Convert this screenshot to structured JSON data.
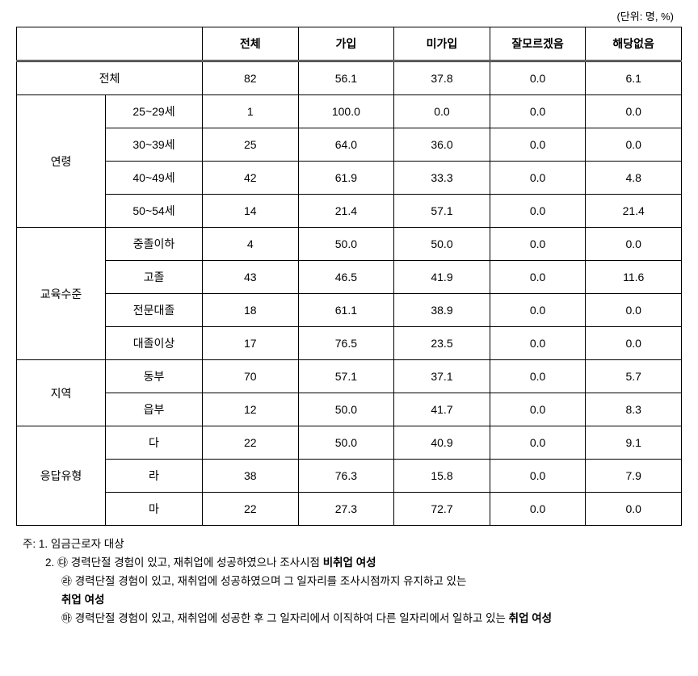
{
  "unit_label": "(단위: 명, %)",
  "headers": {
    "blank": "",
    "col1": "전체",
    "col2": "가입",
    "col3": "미가입",
    "col4": "잘모르겠음",
    "col5": "해당없음"
  },
  "total_row": {
    "label": "전체",
    "c1": "82",
    "c2": "56.1",
    "c3": "37.8",
    "c4": "0.0",
    "c5": "6.1"
  },
  "groups": [
    {
      "label": "연령",
      "rows": [
        {
          "label": "25~29세",
          "c1": "1",
          "c2": "100.0",
          "c3": "0.0",
          "c4": "0.0",
          "c5": "0.0"
        },
        {
          "label": "30~39세",
          "c1": "25",
          "c2": "64.0",
          "c3": "36.0",
          "c4": "0.0",
          "c5": "0.0"
        },
        {
          "label": "40~49세",
          "c1": "42",
          "c2": "61.9",
          "c3": "33.3",
          "c4": "0.0",
          "c5": "4.8"
        },
        {
          "label": "50~54세",
          "c1": "14",
          "c2": "21.4",
          "c3": "57.1",
          "c4": "0.0",
          "c5": "21.4"
        }
      ]
    },
    {
      "label": "교육수준",
      "rows": [
        {
          "label": "중졸이하",
          "c1": "4",
          "c2": "50.0",
          "c3": "50.0",
          "c4": "0.0",
          "c5": "0.0"
        },
        {
          "label": "고졸",
          "c1": "43",
          "c2": "46.5",
          "c3": "41.9",
          "c4": "0.0",
          "c5": "11.6"
        },
        {
          "label": "전문대졸",
          "c1": "18",
          "c2": "61.1",
          "c3": "38.9",
          "c4": "0.0",
          "c5": "0.0"
        },
        {
          "label": "대졸이상",
          "c1": "17",
          "c2": "76.5",
          "c3": "23.5",
          "c4": "0.0",
          "c5": "0.0"
        }
      ]
    },
    {
      "label": "지역",
      "rows": [
        {
          "label": "동부",
          "c1": "70",
          "c2": "57.1",
          "c3": "37.1",
          "c4": "0.0",
          "c5": "5.7"
        },
        {
          "label": "읍부",
          "c1": "12",
          "c2": "50.0",
          "c3": "41.7",
          "c4": "0.0",
          "c5": "8.3"
        }
      ]
    },
    {
      "label": "응답유형",
      "rows": [
        {
          "label": "다",
          "c1": "22",
          "c2": "50.0",
          "c3": "40.9",
          "c4": "0.0",
          "c5": "9.1"
        },
        {
          "label": "라",
          "c1": "38",
          "c2": "76.3",
          "c3": "15.8",
          "c4": "0.0",
          "c5": "7.9"
        },
        {
          "label": "마",
          "c1": "22",
          "c2": "27.3",
          "c3": "72.7",
          "c4": "0.0",
          "c5": "0.0"
        }
      ]
    }
  ],
  "notes": {
    "prefix": "주: ",
    "n1": "1. 임금근로자 대상",
    "n2_prefix": "2. ",
    "n2a_mark": "㉰",
    "n2a_text": " 경력단절 경험이 있고, 재취업에 성공하였으나 조사시점 ",
    "n2a_bold": "비취업 여성",
    "n2b_mark": "㉱",
    "n2b_text": " 경력단절 경험이 있고, 재취업에 성공하였으며 그 일자리를 조사시점까지 유지하고 있는",
    "n2b_bold": "취업 여성",
    "n2c_mark": "㉲",
    "n2c_text": " 경력단절 경험이 있고, 재취업에 성공한 후 그 일자리에서 이직하여 다른 일자리에서 일하고 있는 ",
    "n2c_bold": "취업 여성"
  }
}
